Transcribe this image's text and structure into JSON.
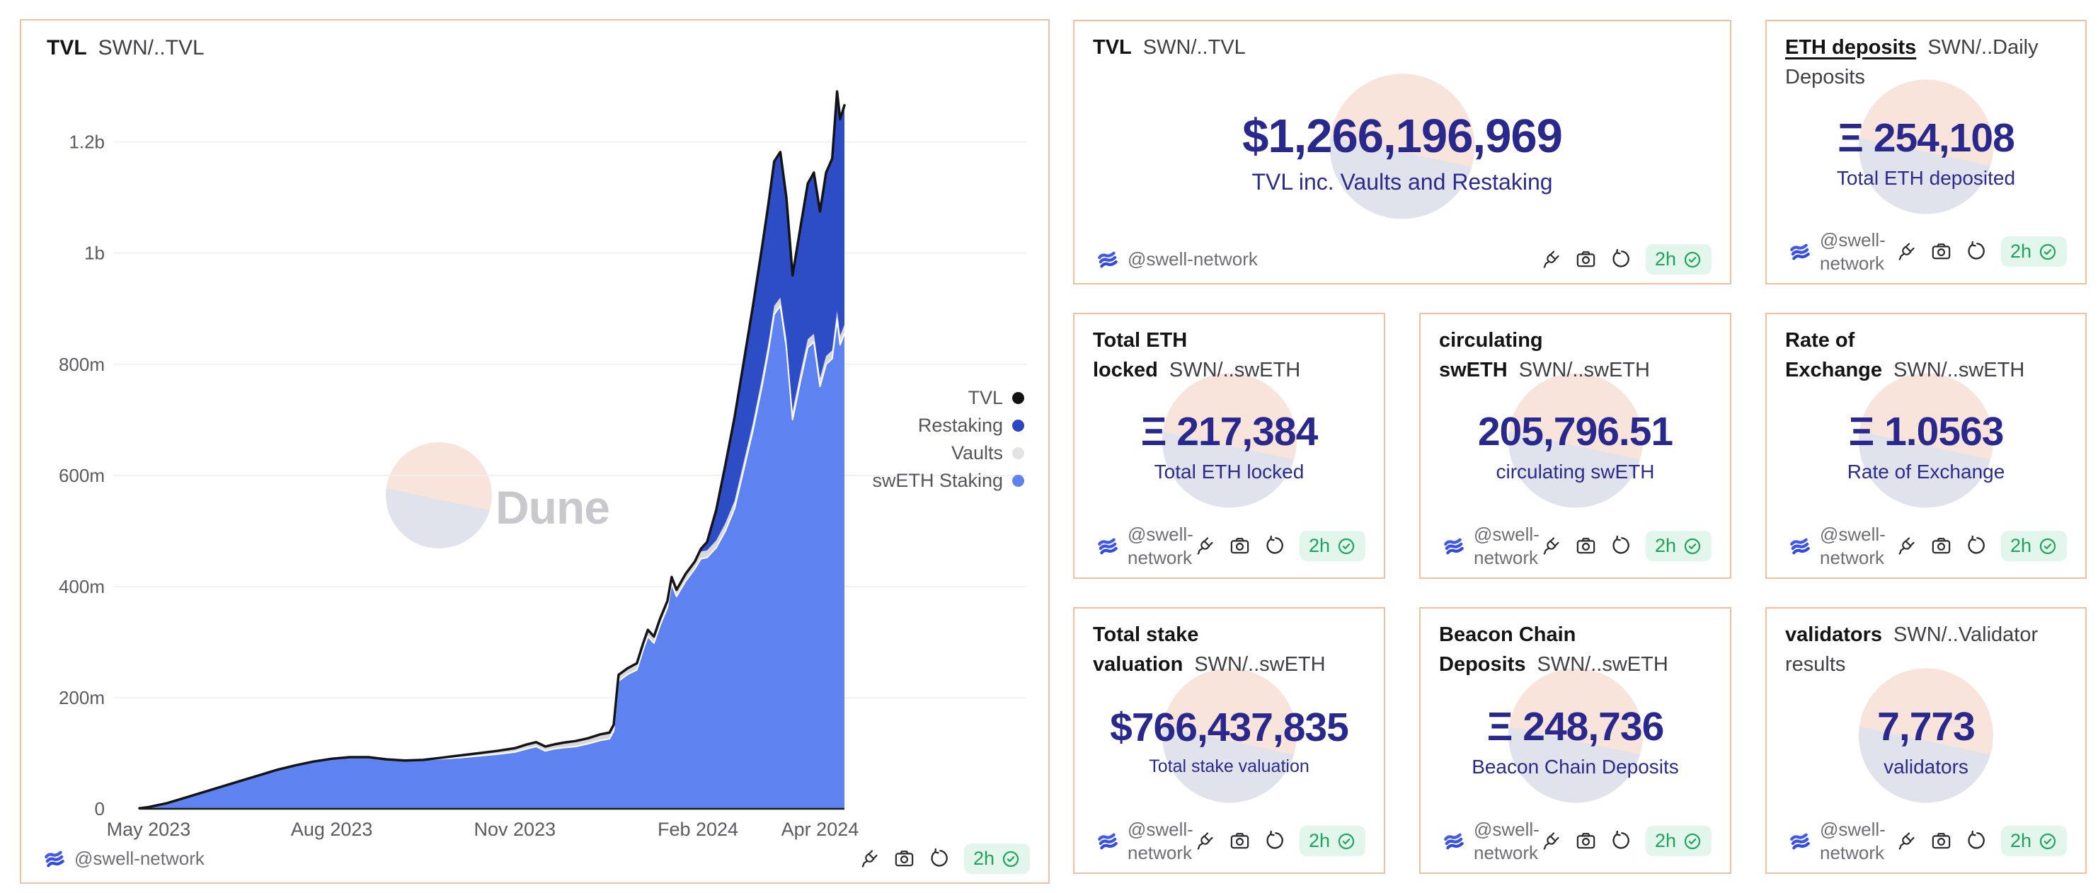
{
  "page": {
    "background": "#ffffff",
    "card_border": "#f1c0a4",
    "accent_navy": "#28288d",
    "badge_green": "#1fa35c",
    "badge_bg": "#e3f6ec"
  },
  "footer": {
    "handle": "@swell-network",
    "age": "2h"
  },
  "chart_card": {
    "title_bold": "TVL",
    "title_rest": "SWN/..TVL",
    "watermark": "Dune"
  },
  "chart_data": {
    "type": "area",
    "title": "TVL",
    "subtitle": "SWN/..TVL",
    "stacked": true,
    "unit": "USD",
    "value_scale": "millions",
    "x_unit": "months since 2023-05-01",
    "ylim": [
      0,
      1300
    ],
    "grid": "horizontal",
    "legend_position": "right",
    "x_ticks": [
      {
        "t": 0,
        "label": "May 2023"
      },
      {
        "t": 3,
        "label": "Aug 2023"
      },
      {
        "t": 6,
        "label": "Nov 2023"
      },
      {
        "t": 9,
        "label": "Feb 2024"
      },
      {
        "t": 11,
        "label": "Apr 2024"
      }
    ],
    "y_ticks": [
      {
        "v": 0,
        "label": "0"
      },
      {
        "v": 200,
        "label": "200m"
      },
      {
        "v": 400,
        "label": "400m"
      },
      {
        "v": 600,
        "label": "600m"
      },
      {
        "v": 800,
        "label": "800m"
      },
      {
        "v": 1000,
        "label": "1b"
      },
      {
        "v": 1200,
        "label": "1.2b"
      }
    ],
    "legend": [
      {
        "label": "TVL",
        "color": "#121214"
      },
      {
        "label": "Restaking",
        "color": "#2b46c4"
      },
      {
        "label": "Vaults",
        "color": "#e3e3e5"
      },
      {
        "label": "swETH Staking",
        "color": "#5f82f1"
      }
    ],
    "colors": {
      "sweth": "#5f82f1",
      "vaults": "#d8d8da",
      "restaking": "#2d4dc7",
      "tvl_line": "#141416",
      "boundary_line": "#ffffff"
    },
    "t": [
      -0.15,
      0,
      0.3,
      0.6,
      0.9,
      1.2,
      1.5,
      1.8,
      2.1,
      2.4,
      2.7,
      3.0,
      3.3,
      3.6,
      3.9,
      4.2,
      4.5,
      4.8,
      5.1,
      5.4,
      5.7,
      6.0,
      6.2,
      6.35,
      6.5,
      6.65,
      6.8,
      7.0,
      7.2,
      7.4,
      7.55,
      7.62,
      7.7,
      7.85,
      8.0,
      8.1,
      8.18,
      8.28,
      8.38,
      8.5,
      8.57,
      8.65,
      8.8,
      8.95,
      9.05,
      9.15,
      9.3,
      9.45,
      9.6,
      9.75,
      9.9,
      10.05,
      10.15,
      10.25,
      10.35,
      10.45,
      10.55,
      10.68,
      10.8,
      10.9,
      11.0,
      11.1,
      11.2,
      11.28,
      11.33,
      11.4
    ],
    "sweth": [
      1,
      3,
      10,
      20,
      30,
      40,
      50,
      60,
      70,
      78,
      85,
      90,
      93,
      93,
      89,
      87,
      88,
      90,
      92,
      95,
      98,
      102,
      108,
      112,
      104,
      108,
      110,
      112,
      117,
      123,
      126,
      140,
      230,
      242,
      250,
      285,
      310,
      298,
      330,
      362,
      405,
      382,
      410,
      432,
      450,
      452,
      470,
      500,
      540,
      610,
      680,
      760,
      820,
      890,
      905,
      830,
      700,
      770,
      830,
      840,
      760,
      800,
      810,
      880,
      835,
      855
    ],
    "vaults": [
      0,
      0,
      0,
      0,
      0,
      0,
      0,
      0,
      0,
      0,
      0,
      0,
      0,
      0,
      0,
      0,
      0,
      2,
      4,
      5,
      6,
      7,
      8,
      8,
      8,
      8,
      9,
      10,
      10,
      11,
      11,
      11,
      11,
      11,
      12,
      12,
      12,
      12,
      12,
      12,
      12,
      12,
      13,
      13,
      13,
      13,
      13,
      14,
      14,
      14,
      14,
      15,
      15,
      15,
      15,
      15,
      15,
      15,
      15,
      15,
      15,
      15,
      15,
      16,
      16,
      16
    ],
    "restaking": [
      0,
      0,
      0,
      0,
      0,
      0,
      0,
      0,
      0,
      0,
      0,
      0,
      0,
      0,
      0,
      0,
      0,
      0,
      0,
      0,
      0,
      0,
      0,
      0,
      0,
      0,
      0,
      0,
      0,
      0,
      0,
      0,
      0,
      0,
      0,
      0,
      0,
      0,
      0,
      0,
      0,
      0,
      0,
      0,
      5,
      15,
      55,
      105,
      150,
      180,
      210,
      235,
      250,
      260,
      262,
      255,
      245,
      262,
      280,
      290,
      300,
      330,
      345,
      395,
      390,
      395
    ],
    "final_tvl_millions": 1266
  },
  "counters": [
    {
      "title_bold": "TVL",
      "title_rest": "SWN/..TVL",
      "value": "$1,266,196,969",
      "subtitle": "TVL inc. Vaults and Restaking"
    },
    {
      "title_bold": "ETH deposits",
      "title_rest": "SWN/..Daily Deposits",
      "value": "Ξ 254,108",
      "subtitle": "Total ETH deposited"
    },
    {
      "title_bold": "Total ETH locked",
      "title_rest": "SWN/..swETH",
      "value": "Ξ 217,384",
      "subtitle": "Total ETH locked"
    },
    {
      "title_bold": "circulating swETH",
      "title_rest": "SWN/..swETH",
      "value": "205,796.51",
      "subtitle": "circulating swETH"
    },
    {
      "title_bold": "Rate of Exchange",
      "title_rest": "SWN/..swETH",
      "value": "Ξ 1.0563",
      "subtitle": "Rate of Exchange"
    },
    {
      "title_bold": "Total stake valuation",
      "title_rest": "SWN/..swETH",
      "value": "$766,437,835",
      "subtitle": "Total stake valuation"
    },
    {
      "title_bold": "Beacon Chain Deposits",
      "title_rest": "SWN/..swETH",
      "value": "Ξ 248,736",
      "subtitle": "Beacon Chain Deposits"
    },
    {
      "title_bold": "validators",
      "title_rest": "SWN/..Validator results",
      "value": "7,773",
      "subtitle": "validators"
    }
  ]
}
